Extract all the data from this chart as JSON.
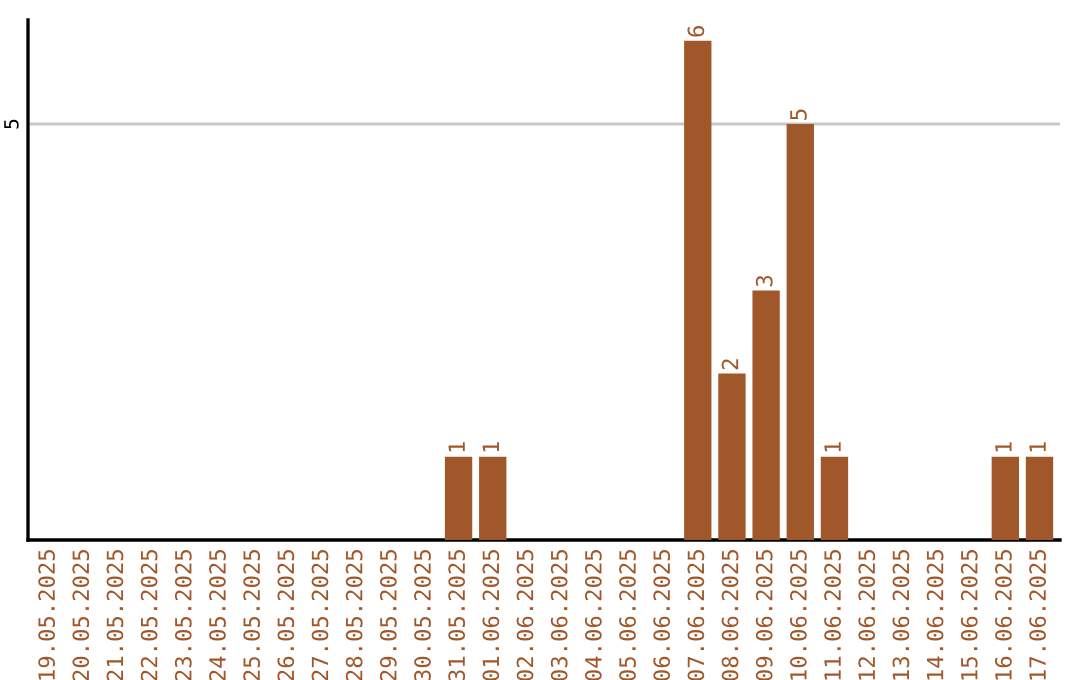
{
  "chart_data": {
    "type": "bar",
    "categories": [
      "19.05.2025",
      "20.05.2025",
      "21.05.2025",
      "22.05.2025",
      "23.05.2025",
      "24.05.2025",
      "25.05.2025",
      "26.05.2025",
      "27.05.2025",
      "28.05.2025",
      "29.05.2025",
      "30.05.2025",
      "31.05.2025",
      "01.06.2025",
      "02.06.2025",
      "03.06.2025",
      "04.06.2025",
      "05.06.2025",
      "06.06.2025",
      "07.06.2025",
      "08.06.2025",
      "09.06.2025",
      "10.06.2025",
      "11.06.2025",
      "12.06.2025",
      "13.06.2025",
      "14.06.2025",
      "15.06.2025",
      "16.06.2025",
      "17.06.2025"
    ],
    "values": [
      null,
      null,
      null,
      null,
      null,
      null,
      null,
      null,
      null,
      null,
      null,
      null,
      1,
      1,
      null,
      null,
      null,
      null,
      null,
      6,
      2,
      3,
      5,
      1,
      null,
      null,
      null,
      null,
      1,
      1
    ],
    "data_labels": true,
    "color": "#a0572a",
    "ylim": [
      0,
      6.25
    ],
    "yticks": [
      5
    ],
    "grid": "y"
  }
}
